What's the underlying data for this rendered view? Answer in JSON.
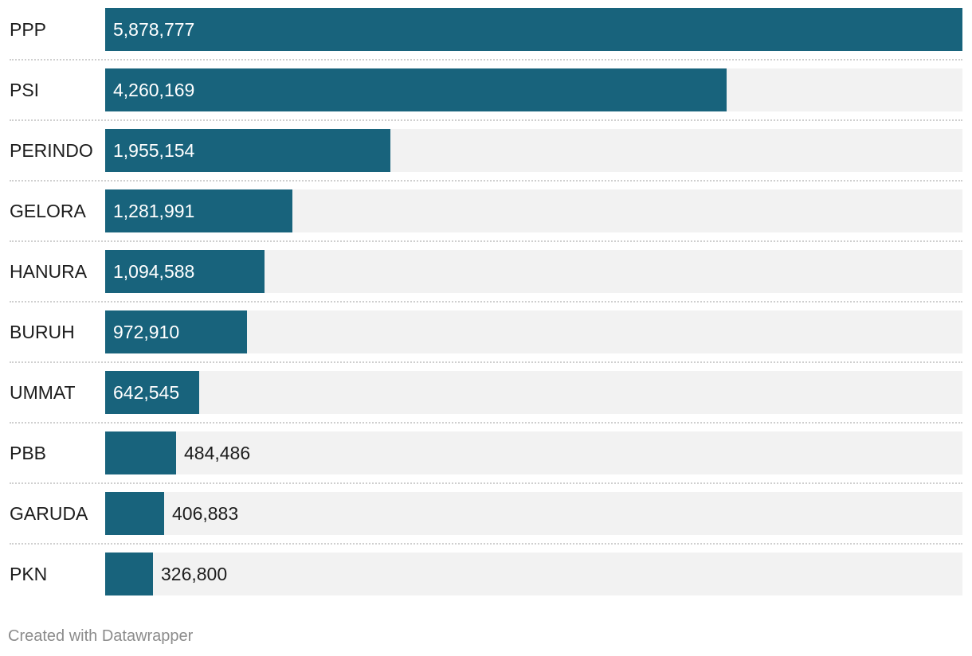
{
  "chart_data": {
    "type": "bar",
    "orientation": "horizontal",
    "title": "",
    "xlabel": "",
    "ylabel": "",
    "categories": [
      "PPP",
      "PSI",
      "PERINDO",
      "GELORA",
      "HANURA",
      "BURUH",
      "UMMAT",
      "PBB",
      "GARUDA",
      "PKN"
    ],
    "values": [
      5878777,
      4260169,
      1955154,
      1281991,
      1094588,
      972910,
      642545,
      484486,
      406883,
      326800
    ],
    "value_labels": [
      "5,878,777",
      "4,260,169",
      "1,955,154",
      "1,281,991",
      "1,094,588",
      "972,910",
      "642,545",
      "484,486",
      "406,883",
      "326,800"
    ],
    "xlim": [
      0,
      5878777
    ],
    "grid": false,
    "legend": "none",
    "bar_color": "#18637c",
    "track_color": "#f2f2f2"
  },
  "footer": {
    "credit": "Created with Datawrapper"
  }
}
